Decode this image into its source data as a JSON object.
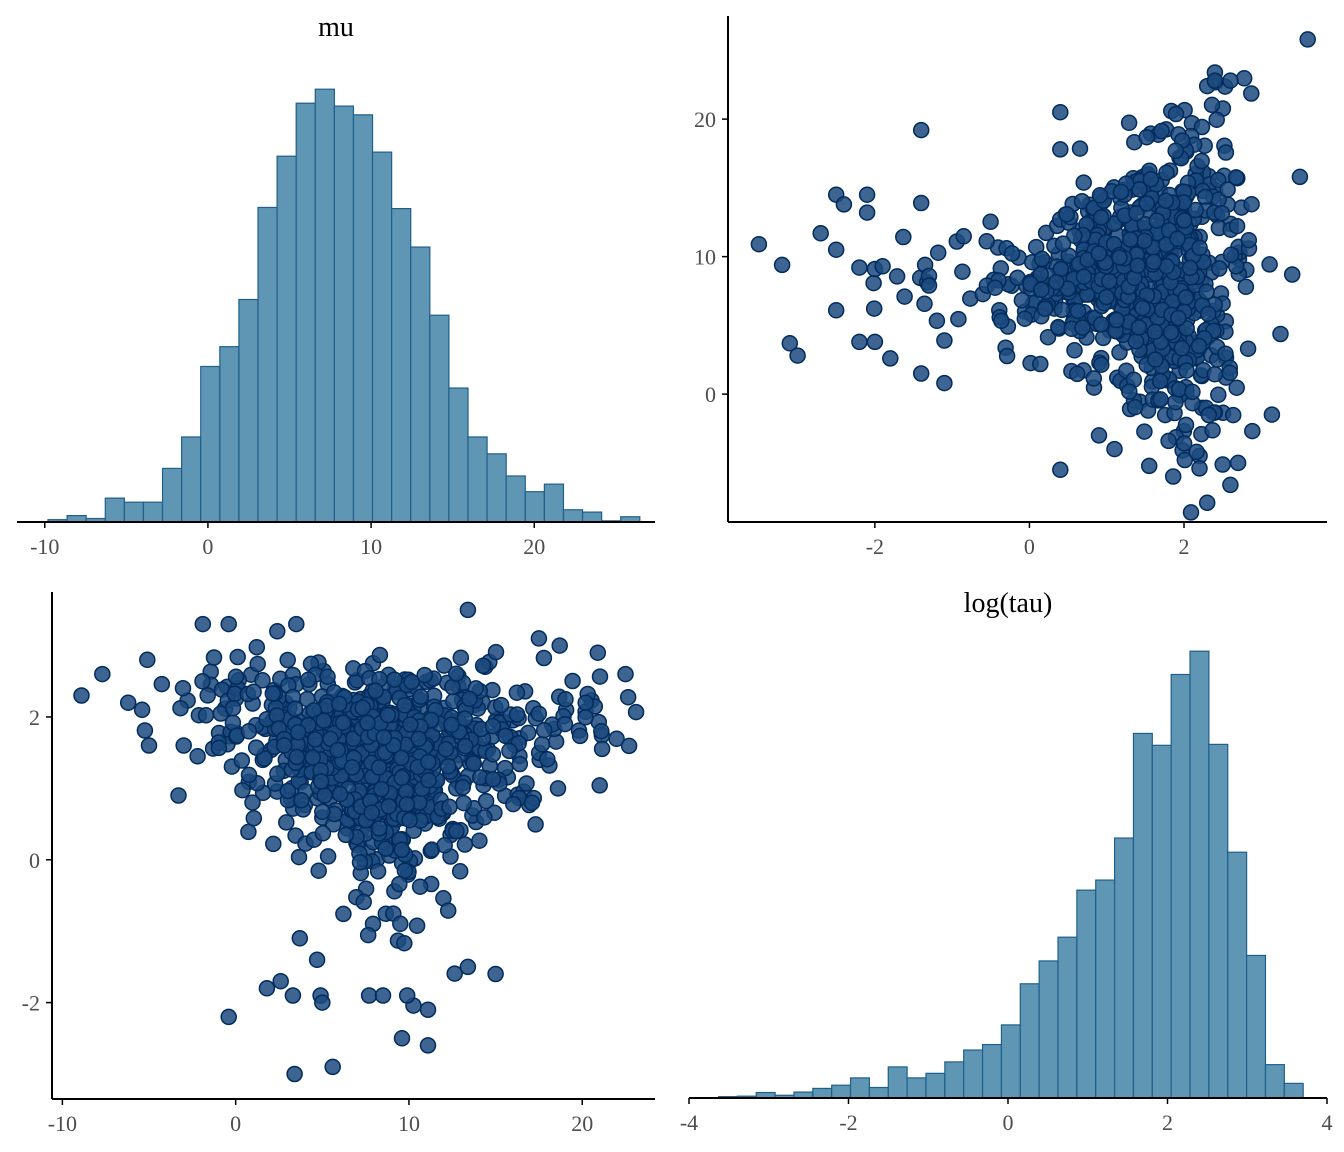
{
  "chart_data": [
    {
      "id": "hist-mu",
      "type": "bar",
      "title": "mu",
      "xlabel": "",
      "ylabel": "",
      "xlim": [
        -11.7,
        27.4
      ],
      "bin_width": 1.17,
      "bin_start": -9.8,
      "values": [
        0.4,
        1.1,
        0.6,
        4.1,
        3.4,
        3.4,
        9.2,
        14.6,
        26.7,
        30.1,
        38.2,
        54.0,
        62.8,
        71.9,
        74.3,
        71.4,
        69.9,
        63.5,
        53.8,
        47.2,
        35.5,
        23.0,
        14.6,
        11.7,
        7.9,
        5.2,
        6.5,
        2.1,
        1.7,
        0.2,
        0.9
      ],
      "ylim": [
        0,
        80
      ],
      "x_ticks": [
        -10,
        0,
        10,
        20
      ],
      "fill": "#5f96b4",
      "edge": "#1f5f8b",
      "grid": false
    },
    {
      "id": "hist-logtau",
      "type": "bar",
      "title": "log(tau)",
      "xlabel": "",
      "ylabel": "",
      "xlim": [
        -4,
        4
      ],
      "bin_width": 0.2365,
      "bin_start": -3.63,
      "values": [
        0.3,
        0.4,
        1.2,
        0.6,
        1.3,
        2.1,
        2.8,
        4.4,
        2.3,
        6.8,
        4.4,
        5.4,
        7.9,
        10.5,
        11.7,
        16.0,
        25.0,
        30.0,
        35.2,
        45.5,
        47.7,
        56.9,
        79.8,
        77.2,
        92.7,
        97.8,
        77.4,
        53.8,
        31.2,
        7.3,
        3.2
      ],
      "ylim": [
        0,
        102
      ],
      "x_ticks": [
        -4,
        -2,
        0,
        2,
        4
      ],
      "fill": "#5f96b4",
      "edge": "#1f5f8b",
      "grid": false
    },
    {
      "id": "scatter-logtau-mu",
      "type": "scatter",
      "xlabel": "",
      "ylabel": "",
      "xlim": [
        -3.9,
        3.85
      ],
      "ylim": [
        -9.3,
        27.5
      ],
      "x_ticks": [
        -2,
        0,
        2
      ],
      "y_ticks": [
        0,
        10,
        20
      ],
      "fill": "#1c4a7e",
      "edge": "#002b5c",
      "grid": false,
      "seed": 11,
      "n": 880,
      "listed_points": [
        [
          -3.5,
          10.9
        ],
        [
          -3.2,
          9.4
        ],
        [
          -3.1,
          3.7
        ],
        [
          -3.0,
          2.8
        ],
        [
          -2.7,
          11.7
        ],
        [
          -2.5,
          14.5
        ],
        [
          -2.5,
          10.5
        ],
        [
          -2.4,
          13.8
        ],
        [
          -2.5,
          6.1
        ],
        [
          -2.2,
          3.8
        ],
        [
          -2.1,
          14.5
        ],
        [
          -2.1,
          13.2
        ],
        [
          -2.2,
          9.2
        ],
        [
          -2.0,
          9.1
        ],
        [
          -1.9,
          9.3
        ],
        [
          -2.0,
          3.8
        ],
        [
          -1.8,
          2.6
        ],
        [
          -1.4,
          19.2
        ],
        [
          -1.4,
          13.9
        ],
        [
          -1.4,
          1.5
        ],
        [
          -1.1,
          0.8
        ],
        [
          -1.1,
          3.9
        ],
        [
          -1.3,
          8.6
        ],
        [
          -1.3,
          7.9
        ],
        [
          0.4,
          17.8
        ],
        [
          0.4,
          20.5
        ],
        [
          2.3,
          22.4
        ],
        [
          2.4,
          22.8
        ],
        [
          2.6,
          22.8
        ],
        [
          3.6,
          25.8
        ],
        [
          3.5,
          15.8
        ],
        [
          3.4,
          8.7
        ],
        [
          0.4,
          -5.5
        ],
        [
          2.3,
          -7.9
        ],
        [
          2.6,
          -6.6
        ],
        [
          1.1,
          -4.0
        ],
        [
          0.9,
          -3.0
        ],
        [
          1.8,
          -3.4
        ],
        [
          2.2,
          -5.4
        ],
        [
          2.7,
          -5.0
        ]
      ]
    },
    {
      "id": "scatter-mu-logtau",
      "type": "scatter",
      "xlabel": "",
      "ylabel": "",
      "xlim": [
        -10.6,
        24.2
      ],
      "ylim": [
        -3.35,
        3.75
      ],
      "x_ticks": [
        -10,
        0,
        10,
        20
      ],
      "y_ticks": [
        -2,
        0,
        2
      ],
      "fill": "#1c4a7e",
      "edge": "#002b5c",
      "grid": false,
      "seed": 29,
      "n": 880,
      "listed_points": [
        [
          -8.9,
          2.3
        ],
        [
          -7.7,
          2.6
        ],
        [
          -6.2,
          2.2
        ],
        [
          -5.4,
          2.1
        ],
        [
          -5.1,
          2.8
        ],
        [
          -5.0,
          1.6
        ],
        [
          -3.3,
          0.9
        ],
        [
          -3.0,
          1.6
        ],
        [
          -1.9,
          3.3
        ],
        [
          -0.4,
          3.3
        ],
        [
          2.4,
          3.2
        ],
        [
          3.5,
          3.3
        ],
        [
          13.4,
          3.5
        ],
        [
          17.5,
          3.1
        ],
        [
          18.7,
          3.0
        ],
        [
          20.9,
          2.9
        ],
        [
          21.1,
          1.8
        ],
        [
          22.5,
          2.6
        ],
        [
          20.2,
          2.2
        ],
        [
          19.0,
          1.9
        ],
        [
          18.6,
          1.0
        ],
        [
          17.1,
          0.8
        ],
        [
          15.0,
          -1.6
        ],
        [
          13.4,
          -1.5
        ],
        [
          11.1,
          -2.1
        ],
        [
          11.1,
          -2.6
        ],
        [
          9.6,
          -2.5
        ],
        [
          5.6,
          -2.9
        ],
        [
          3.4,
          -3.0
        ],
        [
          -0.4,
          -2.2
        ],
        [
          1.8,
          -1.8
        ],
        [
          2.6,
          -1.7
        ],
        [
          3.3,
          -1.9
        ],
        [
          4.9,
          -1.9
        ],
        [
          5.0,
          -2.0
        ],
        [
          7.7,
          -1.9
        ],
        [
          8.5,
          -1.9
        ],
        [
          9.9,
          -1.9
        ],
        [
          4.7,
          -1.4
        ],
        [
          3.7,
          -1.1
        ]
      ]
    }
  ]
}
